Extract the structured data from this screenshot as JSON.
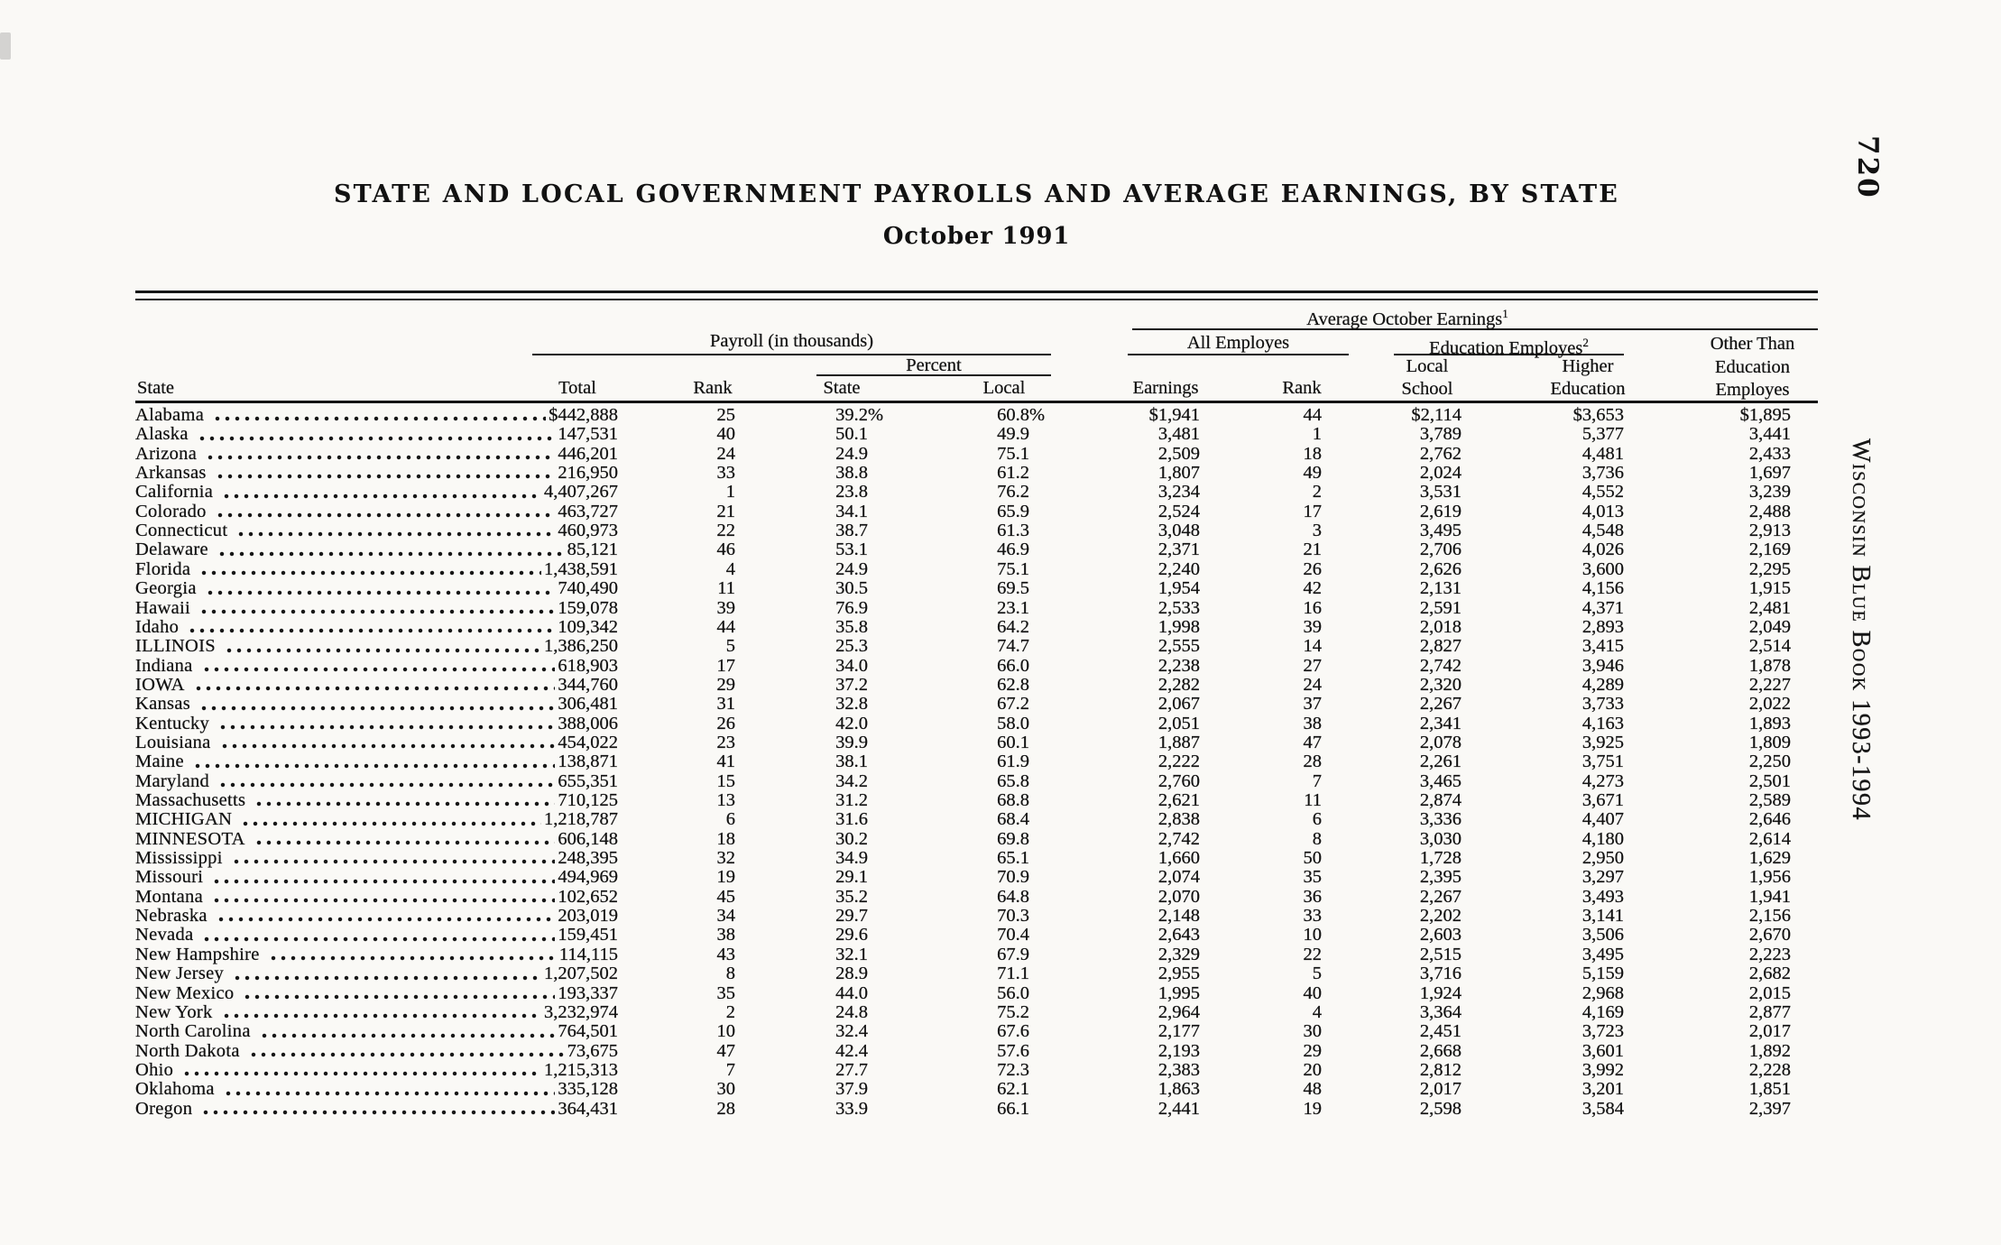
{
  "header": {
    "page_number": "720",
    "book_title": "Wisconsin Blue Book 1993-1994",
    "title": "STATE AND LOCAL GOVERNMENT PAYROLLS AND AVERAGE EARNINGS, BY STATE",
    "subtitle": "October 1991"
  },
  "table": {
    "group_headers": {
      "payroll": "Payroll (in thousands)",
      "percent": "Percent",
      "avg_earnings": "Average October Earnings",
      "avg_earnings_note": "1",
      "all_employes": "All Employes",
      "education_employes": "Education Employes",
      "education_employes_note": "2",
      "other_than_lines": [
        "Other Than",
        "Education",
        "Employes"
      ]
    },
    "columns": {
      "state": "State",
      "total": "Total",
      "rank": "Rank",
      "pct_state": "State",
      "pct_local": "Local",
      "earnings": "Earnings",
      "rank2": "Rank",
      "local_school": [
        "Local",
        "School"
      ],
      "higher_education": [
        "Higher",
        "Education"
      ]
    },
    "rows": [
      [
        "Alabama",
        "$442,888",
        "25",
        "39.2",
        "%",
        "60.8",
        "%",
        "$1,941",
        "44",
        "$2,114",
        "$3,653",
        "$1,895"
      ],
      [
        "Alaska",
        "147,531",
        "40",
        "50.1",
        "",
        "49.9",
        "",
        "3,481",
        "1",
        "3,789",
        "5,377",
        "3,441"
      ],
      [
        "Arizona",
        "446,201",
        "24",
        "24.9",
        "",
        "75.1",
        "",
        "2,509",
        "18",
        "2,762",
        "4,481",
        "2,433"
      ],
      [
        "Arkansas",
        "216,950",
        "33",
        "38.8",
        "",
        "61.2",
        "",
        "1,807",
        "49",
        "2,024",
        "3,736",
        "1,697"
      ],
      [
        "California",
        "4,407,267",
        "1",
        "23.8",
        "",
        "76.2",
        "",
        "3,234",
        "2",
        "3,531",
        "4,552",
        "3,239"
      ],
      [
        "Colorado",
        "463,727",
        "21",
        "34.1",
        "",
        "65.9",
        "",
        "2,524",
        "17",
        "2,619",
        "4,013",
        "2,488"
      ],
      [
        "Connecticut",
        "460,973",
        "22",
        "38.7",
        "",
        "61.3",
        "",
        "3,048",
        "3",
        "3,495",
        "4,548",
        "2,913"
      ],
      [
        "Delaware",
        "85,121",
        "46",
        "53.1",
        "",
        "46.9",
        "",
        "2,371",
        "21",
        "2,706",
        "4,026",
        "2,169"
      ],
      [
        "Florida",
        "1,438,591",
        "4",
        "24.9",
        "",
        "75.1",
        "",
        "2,240",
        "26",
        "2,626",
        "3,600",
        "2,295"
      ],
      [
        "Georgia",
        "740,490",
        "11",
        "30.5",
        "",
        "69.5",
        "",
        "1,954",
        "42",
        "2,131",
        "4,156",
        "1,915"
      ],
      [
        "Hawaii",
        "159,078",
        "39",
        "76.9",
        "",
        "23.1",
        "",
        "2,533",
        "16",
        "2,591",
        "4,371",
        "2,481"
      ],
      [
        "Idaho",
        "109,342",
        "44",
        "35.8",
        "",
        "64.2",
        "",
        "1,998",
        "39",
        "2,018",
        "2,893",
        "2,049"
      ],
      [
        "ILLINOIS",
        "1,386,250",
        "5",
        "25.3",
        "",
        "74.7",
        "",
        "2,555",
        "14",
        "2,827",
        "3,415",
        "2,514"
      ],
      [
        "Indiana",
        "618,903",
        "17",
        "34.0",
        "",
        "66.0",
        "",
        "2,238",
        "27",
        "2,742",
        "3,946",
        "1,878"
      ],
      [
        "IOWA",
        "344,760",
        "29",
        "37.2",
        "",
        "62.8",
        "",
        "2,282",
        "24",
        "2,320",
        "4,289",
        "2,227"
      ],
      [
        "Kansas",
        "306,481",
        "31",
        "32.8",
        "",
        "67.2",
        "",
        "2,067",
        "37",
        "2,267",
        "3,733",
        "2,022"
      ],
      [
        "Kentucky",
        "388,006",
        "26",
        "42.0",
        "",
        "58.0",
        "",
        "2,051",
        "38",
        "2,341",
        "4,163",
        "1,893"
      ],
      [
        "Louisiana",
        "454,022",
        "23",
        "39.9",
        "",
        "60.1",
        "",
        "1,887",
        "47",
        "2,078",
        "3,925",
        "1,809"
      ],
      [
        "Maine",
        "138,871",
        "41",
        "38.1",
        "",
        "61.9",
        "",
        "2,222",
        "28",
        "2,261",
        "3,751",
        "2,250"
      ],
      [
        "Maryland",
        "655,351",
        "15",
        "34.2",
        "",
        "65.8",
        "",
        "2,760",
        "7",
        "3,465",
        "4,273",
        "2,501"
      ],
      [
        "Massachusetts",
        "710,125",
        "13",
        "31.2",
        "",
        "68.8",
        "",
        "2,621",
        "11",
        "2,874",
        "3,671",
        "2,589"
      ],
      [
        "MICHIGAN",
        "1,218,787",
        "6",
        "31.6",
        "",
        "68.4",
        "",
        "2,838",
        "6",
        "3,336",
        "4,407",
        "2,646"
      ],
      [
        "MINNESOTA",
        "606,148",
        "18",
        "30.2",
        "",
        "69.8",
        "",
        "2,742",
        "8",
        "3,030",
        "4,180",
        "2,614"
      ],
      [
        "Mississippi",
        "248,395",
        "32",
        "34.9",
        "",
        "65.1",
        "",
        "1,660",
        "50",
        "1,728",
        "2,950",
        "1,629"
      ],
      [
        "Missouri",
        "494,969",
        "19",
        "29.1",
        "",
        "70.9",
        "",
        "2,074",
        "35",
        "2,395",
        "3,297",
        "1,956"
      ],
      [
        "Montana",
        "102,652",
        "45",
        "35.2",
        "",
        "64.8",
        "",
        "2,070",
        "36",
        "2,267",
        "3,493",
        "1,941"
      ],
      [
        "Nebraska",
        "203,019",
        "34",
        "29.7",
        "",
        "70.3",
        "",
        "2,148",
        "33",
        "2,202",
        "3,141",
        "2,156"
      ],
      [
        "Nevada",
        "159,451",
        "38",
        "29.6",
        "",
        "70.4",
        "",
        "2,643",
        "10",
        "2,603",
        "3,506",
        "2,670"
      ],
      [
        "New Hampshire",
        "114,115",
        "43",
        "32.1",
        "",
        "67.9",
        "",
        "2,329",
        "22",
        "2,515",
        "3,495",
        "2,223"
      ],
      [
        "New Jersey",
        "1,207,502",
        "8",
        "28.9",
        "",
        "71.1",
        "",
        "2,955",
        "5",
        "3,716",
        "5,159",
        "2,682"
      ],
      [
        "New Mexico",
        "193,337",
        "35",
        "44.0",
        "",
        "56.0",
        "",
        "1,995",
        "40",
        "1,924",
        "2,968",
        "2,015"
      ],
      [
        "New York",
        "3,232,974",
        "2",
        "24.8",
        "",
        "75.2",
        "",
        "2,964",
        "4",
        "3,364",
        "4,169",
        "2,877"
      ],
      [
        "North Carolina",
        "764,501",
        "10",
        "32.4",
        "",
        "67.6",
        "",
        "2,177",
        "30",
        "2,451",
        "3,723",
        "2,017"
      ],
      [
        "North Dakota",
        "73,675",
        "47",
        "42.4",
        "",
        "57.6",
        "",
        "2,193",
        "29",
        "2,668",
        "3,601",
        "1,892"
      ],
      [
        "Ohio",
        "1,215,313",
        "7",
        "27.7",
        "",
        "72.3",
        "",
        "2,383",
        "20",
        "2,812",
        "3,992",
        "2,228"
      ],
      [
        "Oklahoma",
        "335,128",
        "30",
        "37.9",
        "",
        "62.1",
        "",
        "1,863",
        "48",
        "2,017",
        "3,201",
        "1,851"
      ],
      [
        "Oregon",
        "364,431",
        "28",
        "33.9",
        "",
        "66.1",
        "",
        "2,441",
        "19",
        "2,598",
        "3,584",
        "2,397"
      ]
    ]
  }
}
